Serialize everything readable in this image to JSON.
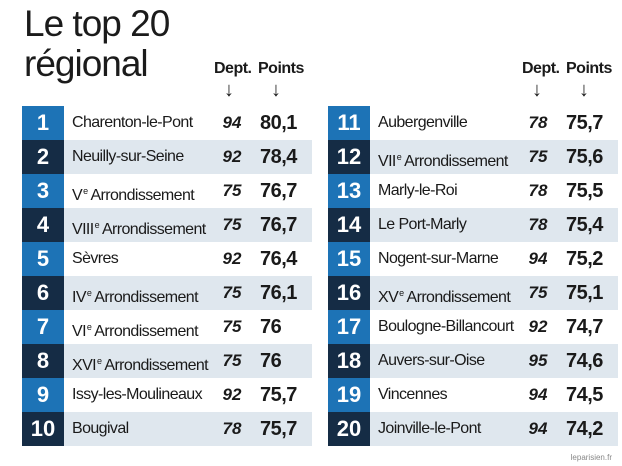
{
  "title": {
    "line1": "Le top 20",
    "line2": "régional"
  },
  "headers": {
    "dept": "Dept.",
    "points": "Points",
    "arrow": "↓"
  },
  "source": "leparisien.fr",
  "colors": {
    "rank_dark": "#152c45",
    "rank_light": "#1d73b6",
    "row_alt": "#dfe7ee"
  },
  "left": [
    {
      "rank": "1",
      "name": "Charenton-le-Pont",
      "sup": "",
      "dept": "94",
      "points": "80,1"
    },
    {
      "rank": "2",
      "name": "Neuilly-sur-Seine",
      "sup": "",
      "dept": "92",
      "points": "78,4"
    },
    {
      "rank": "3",
      "name": "V",
      "sup": "e",
      "rest": " Arrondissement",
      "dept": "75",
      "points": "76,7"
    },
    {
      "rank": "4",
      "name": "VIII",
      "sup": "e",
      "rest": " Arrondissement",
      "dept": "75",
      "points": "76,7"
    },
    {
      "rank": "5",
      "name": "Sèvres",
      "sup": "",
      "dept": "92",
      "points": "76,4"
    },
    {
      "rank": "6",
      "name": "IV",
      "sup": "e",
      "rest": " Arrondissement",
      "dept": "75",
      "points": "76,1"
    },
    {
      "rank": "7",
      "name": "VI",
      "sup": "e",
      "rest": " Arrondissement",
      "dept": "75",
      "points": "76"
    },
    {
      "rank": "8",
      "name": "XVI",
      "sup": "e",
      "rest": " Arrondissement",
      "dept": "75",
      "points": "76"
    },
    {
      "rank": "9",
      "name": "Issy-les-Moulineaux",
      "sup": "",
      "dept": "92",
      "points": "75,7"
    },
    {
      "rank": "10",
      "name": "Bougival",
      "sup": "",
      "dept": "78",
      "points": "75,7"
    }
  ],
  "right": [
    {
      "rank": "11",
      "name": "Aubergenville",
      "sup": "",
      "dept": "78",
      "points": "75,7"
    },
    {
      "rank": "12",
      "name": "VII",
      "sup": "e",
      "rest": " Arrondissement",
      "dept": "75",
      "points": "75,6"
    },
    {
      "rank": "13",
      "name": "Marly-le-Roi",
      "sup": "",
      "dept": "78",
      "points": "75,5"
    },
    {
      "rank": "14",
      "name": "Le Port-Marly",
      "sup": "",
      "dept": "78",
      "points": "75,4"
    },
    {
      "rank": "15",
      "name": "Nogent-sur-Marne",
      "sup": "",
      "dept": "94",
      "points": "75,2"
    },
    {
      "rank": "16",
      "name": "XV",
      "sup": "e",
      "rest": " Arrondissement",
      "dept": "75",
      "points": "75,1"
    },
    {
      "rank": "17",
      "name": "Boulogne-Billancourt",
      "sup": "",
      "dept": "92",
      "points": "74,7"
    },
    {
      "rank": "18",
      "name": "Auvers-sur-Oise",
      "sup": "",
      "dept": "95",
      "points": "74,6"
    },
    {
      "rank": "19",
      "name": "Vincennes",
      "sup": "",
      "dept": "94",
      "points": "74,5"
    },
    {
      "rank": "20",
      "name": "Joinville-le-Pont",
      "sup": "",
      "dept": "94",
      "points": "74,2"
    }
  ]
}
